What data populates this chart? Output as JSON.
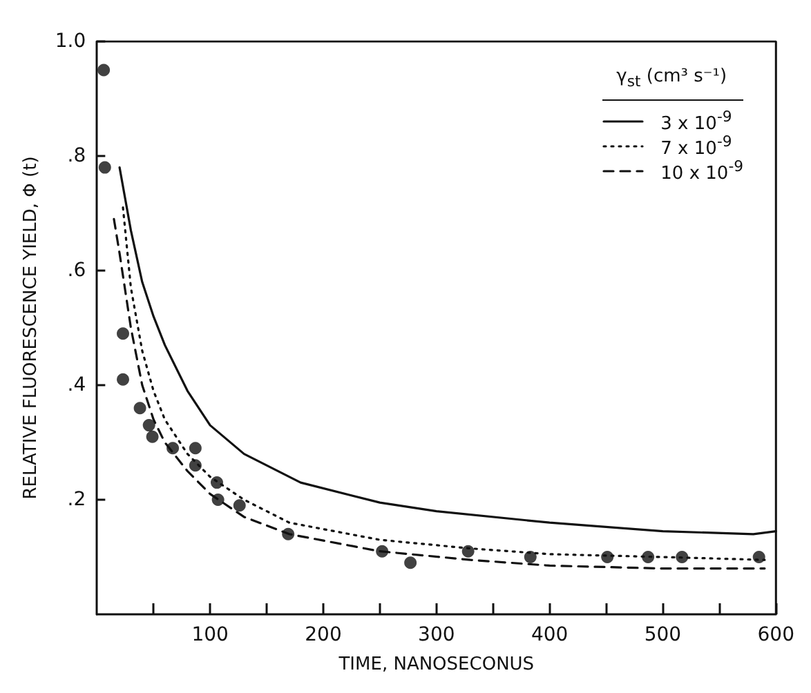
{
  "chart_data": {
    "type": "line",
    "xlabel": "TIME, NANOSECONUS",
    "ylabel": "RELATIVE FLUORESCENCE YIELD, Φ (t)",
    "legend_title": "γ$_{st}$  (cm³ s⁻¹)",
    "legend": "top right",
    "grid": false,
    "xlim": [
      0,
      600
    ],
    "ylim": [
      0,
      1
    ],
    "xticks": [
      {
        "value": 50,
        "label": null
      },
      100,
      {
        "value": 150,
        "label": null
      },
      200,
      {
        "value": 250,
        "label": null
      },
      300,
      {
        "value": 350,
        "label": null
      },
      400,
      {
        "value": 450,
        "label": null
      },
      500,
      {
        "value": 550,
        "label": null
      },
      600
    ],
    "yticks": [
      {
        "value": 0.2,
        "label": ".2"
      },
      {
        "value": 0.4,
        "label": ".4"
      },
      {
        "value": 0.6,
        "label": ".6"
      },
      {
        "value": 0.8,
        "label": ".8"
      },
      {
        "value": 1.0,
        "label": "1.0"
      }
    ],
    "series": [
      {
        "name": "3 x 10$^{-9}$",
        "color": "#111111",
        "marker": "none",
        "line_style": "solid",
        "x": [
          20,
          30,
          40,
          50,
          60,
          80,
          100,
          130,
          180,
          250,
          300,
          400,
          500,
          580,
          600
        ],
        "values": [
          0.78,
          0.67,
          0.58,
          0.52,
          0.47,
          0.39,
          0.33,
          0.28,
          0.23,
          0.195,
          0.18,
          0.16,
          0.145,
          0.14,
          0.145
        ]
      },
      {
        "name": "7 x 10$^{-9}$",
        "color": "#111111",
        "marker": "none",
        "line_style": "dotted",
        "x": [
          23,
          30,
          40,
          50,
          60,
          80,
          100,
          130,
          170,
          250,
          330,
          400,
          500,
          590
        ],
        "values": [
          0.71,
          0.57,
          0.46,
          0.39,
          0.34,
          0.28,
          0.24,
          0.2,
          0.16,
          0.13,
          0.115,
          0.105,
          0.1,
          0.095
        ]
      },
      {
        "name": "10 x 10$^{-9}$",
        "color": "#111111",
        "marker": "none",
        "line_style": "dashed",
        "x": [
          15,
          20,
          30,
          40,
          50,
          60,
          80,
          100,
          130,
          170,
          250,
          330,
          400,
          500,
          590
        ],
        "values": [
          0.69,
          0.63,
          0.5,
          0.4,
          0.34,
          0.3,
          0.25,
          0.21,
          0.17,
          0.14,
          0.11,
          0.095,
          0.085,
          0.08,
          0.08
        ]
      },
      {
        "type": "scatter",
        "color": "#111111",
        "marker": "circle",
        "x": [
          6,
          7,
          23,
          23,
          38,
          46,
          49,
          67,
          87,
          87,
          106,
          107,
          126,
          169,
          252,
          277,
          328,
          383,
          451,
          487,
          517,
          585
        ],
        "values": [
          0.95,
          0.78,
          0.49,
          0.41,
          0.36,
          0.33,
          0.31,
          0.29,
          0.29,
          0.26,
          0.23,
          0.2,
          0.19,
          0.14,
          0.11,
          0.09,
          0.11,
          0.1,
          0.1,
          0.1,
          0.1,
          0.1
        ]
      }
    ]
  }
}
